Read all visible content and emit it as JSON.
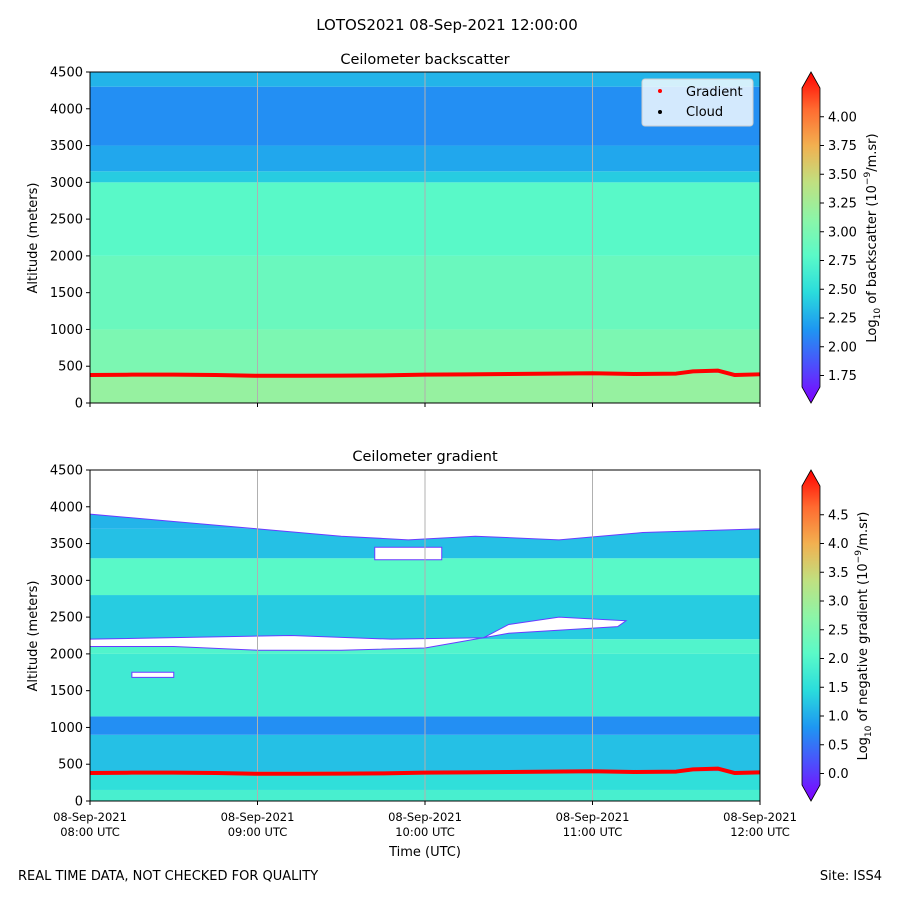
{
  "suptitle": "LOTOS2021 08-Sep-2021 12:00:00",
  "footer": {
    "disclaimer": "REAL TIME DATA, NOT CHECKED FOR QUALITY",
    "site": "Site: ISS4"
  },
  "colors": {
    "rainbow": [
      "#8000ff",
      "#4e4dfc",
      "#1e96f2",
      "#2adcdc",
      "#5afac8",
      "#8cf5a8",
      "#c0e080",
      "#f2b050",
      "#ff6a30",
      "#ff0000"
    ],
    "gradient_marker": "#ff0000",
    "cloud_marker": "#000000",
    "grid": "#b0b0b0"
  },
  "chart_data": [
    {
      "type": "heatmap",
      "id": "backscatter",
      "title": "Ceilometer backscatter",
      "ylabel": "Altitude (meters)",
      "xlabel": "",
      "ylim": [
        0,
        4500
      ],
      "yticks": [
        "0",
        "500",
        "1000",
        "1500",
        "2000",
        "2500",
        "3000",
        "3500",
        "4000",
        "4500"
      ],
      "xlim_hours": [
        8,
        12
      ],
      "grid": "x",
      "legend": {
        "placement": "top-right",
        "entries": [
          {
            "label": "Gradient",
            "color": "#ff0000"
          },
          {
            "label": "Cloud",
            "color": "#000000"
          }
        ]
      },
      "colorbar": {
        "label": "Log10 of backscatter (10^-9/m.sr)",
        "label_main": "Log",
        "label_sub": "10",
        "label_mid": " of backscatter (10",
        "label_sup": "−9",
        "label_end": "/m.sr)",
        "range": [
          1.65,
          4.25
        ],
        "ticks": [
          "1.75",
          "2.00",
          "2.25",
          "2.50",
          "2.75",
          "3.00",
          "3.25",
          "3.50",
          "3.75",
          "4.00"
        ],
        "extend": "both"
      },
      "layers": [
        {
          "from": 0,
          "to": 400,
          "value": 3.15
        },
        {
          "from": 400,
          "to": 1000,
          "value": 3.0
        },
        {
          "from": 1000,
          "to": 2000,
          "value": 2.9
        },
        {
          "from": 2000,
          "to": 3000,
          "value": 2.8
        },
        {
          "from": 3000,
          "to": 3150,
          "value": 2.45
        },
        {
          "from": 3150,
          "to": 3500,
          "value": 2.3
        },
        {
          "from": 3500,
          "to": 4300,
          "value": 2.2
        },
        {
          "from": 4300,
          "to": 4500,
          "value": 2.35
        }
      ],
      "gradient_series": {
        "name": "Gradient",
        "x_hours": [
          8.0,
          8.25,
          8.5,
          8.75,
          9.0,
          9.25,
          9.5,
          9.75,
          10.0,
          10.25,
          10.5,
          10.75,
          11.0,
          11.25,
          11.5,
          11.6,
          11.75,
          11.85,
          12.0
        ],
        "altitude_m": [
          380,
          385,
          385,
          380,
          370,
          370,
          372,
          375,
          385,
          390,
          395,
          400,
          405,
          395,
          400,
          430,
          440,
          380,
          390
        ]
      }
    },
    {
      "type": "heatmap",
      "id": "gradient",
      "title": "Ceilometer gradient",
      "ylabel": "Altitude (meters)",
      "xlabel": "Time (UTC)",
      "ylim": [
        0,
        4500
      ],
      "yticks": [
        "0",
        "500",
        "1000",
        "1500",
        "2000",
        "2500",
        "3000",
        "3500",
        "4000",
        "4500"
      ],
      "xlim_hours": [
        8,
        12
      ],
      "xticks": [
        {
          "hour": 8,
          "date": "08-Sep-2021",
          "time": "08:00 UTC"
        },
        {
          "hour": 9,
          "date": "08-Sep-2021",
          "time": "09:00 UTC"
        },
        {
          "hour": 10,
          "date": "08-Sep-2021",
          "time": "10:00 UTC"
        },
        {
          "hour": 11,
          "date": "08-Sep-2021",
          "time": "11:00 UTC"
        },
        {
          "hour": 12,
          "date": "08-Sep-2021",
          "time": "12:00 UTC"
        }
      ],
      "grid": "x",
      "colorbar": {
        "label": "Log10 of negative gradient (10^-9/m.sr)",
        "label_main": "Log",
        "label_sub": "10",
        "label_mid": " of negative gradient (10",
        "label_sup": "−9",
        "label_end": "/m.sr)",
        "range": [
          -0.2,
          5.0
        ],
        "ticks": [
          "0.0",
          "0.5",
          "1.0",
          "1.5",
          "2.0",
          "2.5",
          "3.0",
          "3.5",
          "4.0",
          "4.5"
        ],
        "extend": "both"
      },
      "layers": [
        {
          "from": 0,
          "to": 150,
          "value": 1.9
        },
        {
          "from": 150,
          "to": 400,
          "value": 1.6
        },
        {
          "from": 400,
          "to": 900,
          "value": 1.3
        },
        {
          "from": 900,
          "to": 1150,
          "value": 0.9
        },
        {
          "from": 1150,
          "to": 2000,
          "value": 1.8
        },
        {
          "from": 2000,
          "to": 2200,
          "value": 2.0
        },
        {
          "from": 2200,
          "to": 2800,
          "value": 1.4
        },
        {
          "from": 2800,
          "to": 3300,
          "value": 2.1
        },
        {
          "from": 3300,
          "to": 3700,
          "value": 1.3
        },
        {
          "from": 3700,
          "to": 4500,
          "value": 1.2
        }
      ],
      "missing_regions": [
        {
          "x_hours": [
            8.0,
            9.2,
            9.8,
            10.35,
            10.5,
            10.8,
            11.2,
            11.15,
            10.5,
            10.0,
            9.5,
            9.0,
            8.5,
            8.0
          ],
          "altitude_m": [
            2200,
            2250,
            2200,
            2220,
            2400,
            2500,
            2450,
            2370,
            2280,
            2080,
            2050,
            2050,
            2100,
            2100
          ]
        },
        {
          "x_hours": [
            8.25,
            8.5,
            8.5,
            8.25
          ],
          "altitude_m": [
            1750,
            1750,
            1680,
            1680
          ]
        },
        {
          "x_hours": [
            8.0,
            8.5,
            9.0,
            9.4,
            9.5,
            10.0,
            10.4,
            10.8,
            11.3,
            12.0,
            12.0,
            11.3,
            10.8,
            10.3,
            9.9,
            9.5,
            9.0,
            8.5,
            8.0
          ],
          "altitude_m": [
            4500,
            4500,
            4500,
            4500,
            4500,
            4500,
            4500,
            4500,
            4500,
            4500,
            3700,
            3650,
            3550,
            3600,
            3550,
            3600,
            3700,
            3800,
            3900
          ]
        },
        {
          "x_hours": [
            9.7,
            10.1,
            10.1,
            9.7
          ],
          "altitude_m": [
            3280,
            3280,
            3450,
            3450
          ]
        }
      ],
      "gradient_series": {
        "name": "Gradient",
        "x_hours": [
          8.0,
          8.25,
          8.5,
          8.75,
          9.0,
          9.25,
          9.5,
          9.75,
          10.0,
          10.25,
          10.5,
          10.75,
          11.0,
          11.25,
          11.5,
          11.6,
          11.75,
          11.85,
          12.0
        ],
        "altitude_m": [
          380,
          385,
          385,
          380,
          370,
          370,
          372,
          375,
          385,
          390,
          395,
          400,
          405,
          395,
          400,
          430,
          440,
          380,
          390
        ]
      }
    }
  ]
}
